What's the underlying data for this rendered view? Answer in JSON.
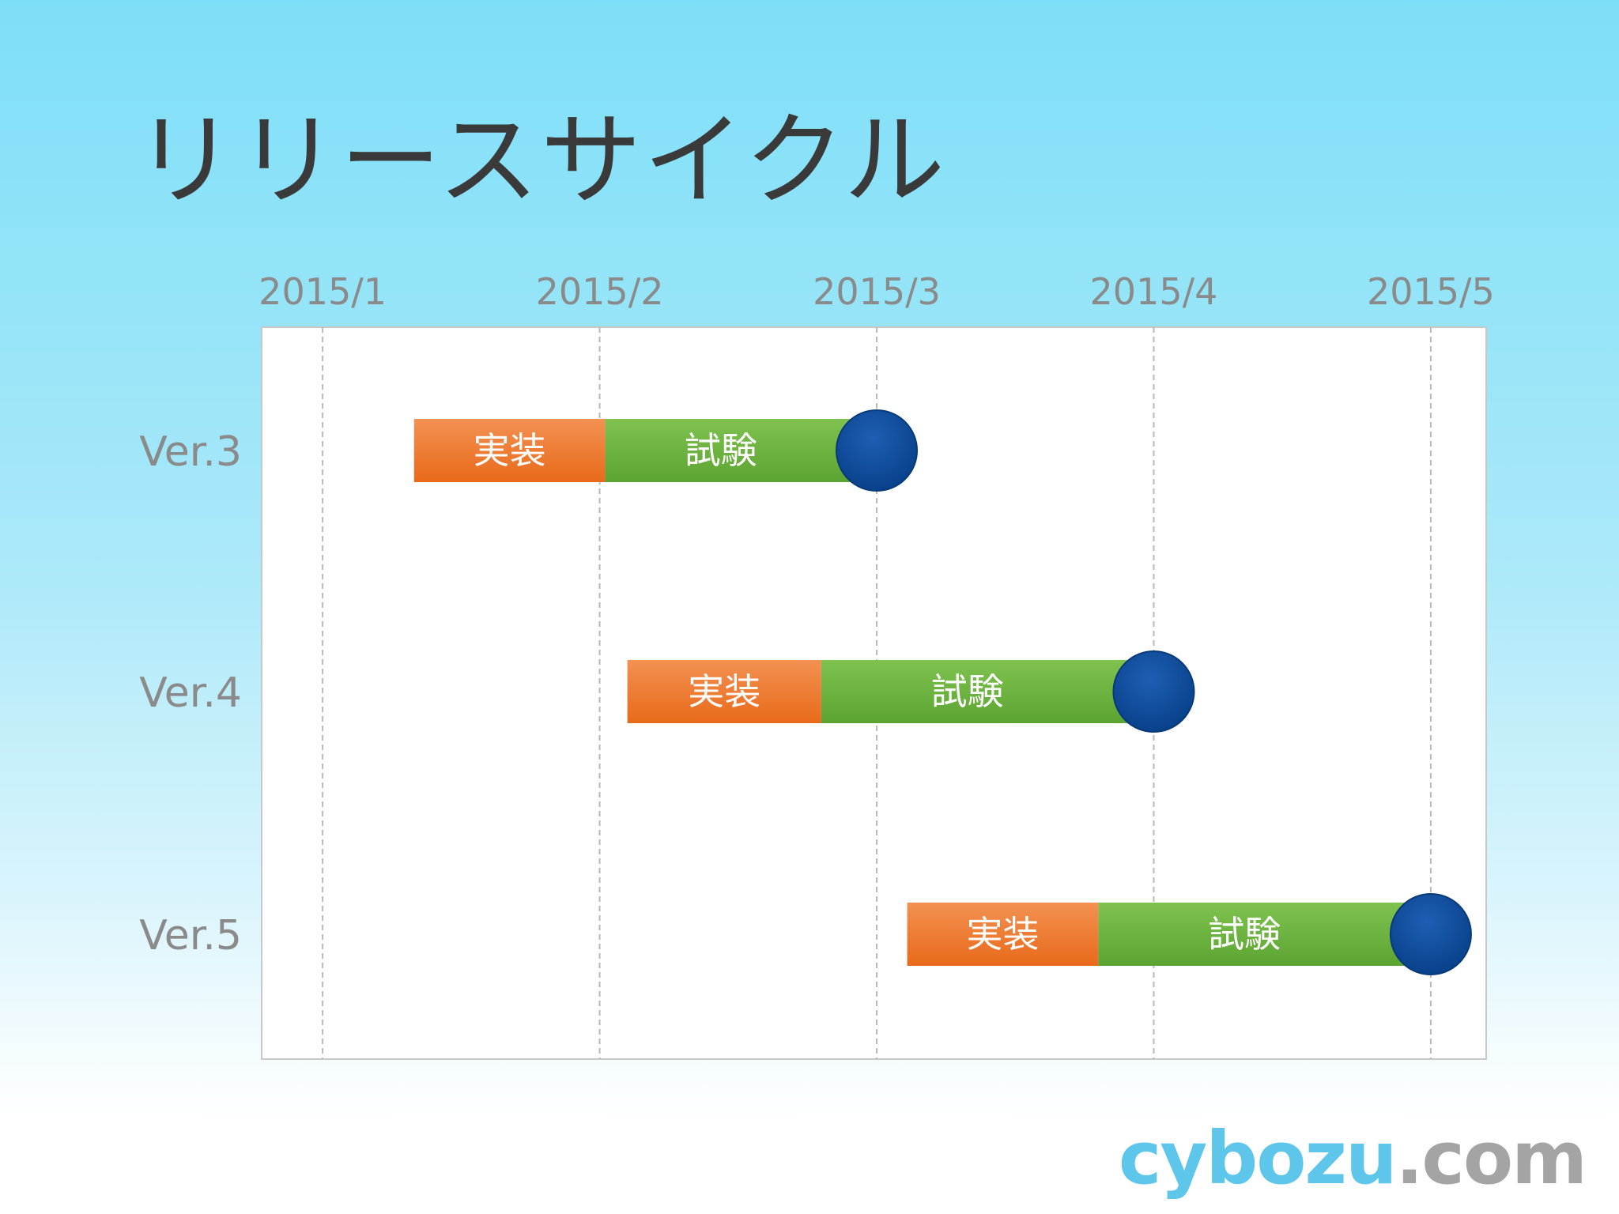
{
  "title": "リリースサイクル",
  "logo": {
    "brand": "cybozu",
    "tld": ".com"
  },
  "colors": {
    "impl": "#ee7328",
    "test": "#6cb240",
    "milestone": "#0a4c9c",
    "grid": "#b9b9b9",
    "text": "#8a8a8a"
  },
  "chart_data": {
    "type": "gantt",
    "x_ticks": [
      "2015/1",
      "2015/2",
      "2015/3",
      "2015/4",
      "2015/5"
    ],
    "x_unit": "month",
    "xlim": [
      0.78,
      5.2
    ],
    "grid": true,
    "rows": [
      {
        "label": "Ver.3",
        "phases": [
          {
            "name": "実装",
            "start": 1.33,
            "end": 2.02
          },
          {
            "name": "試験",
            "start": 2.02,
            "end": 3.0
          }
        ],
        "milestone": 3.0
      },
      {
        "label": "Ver.4",
        "phases": [
          {
            "name": "実装",
            "start": 2.1,
            "end": 2.8
          },
          {
            "name": "試験",
            "start": 2.8,
            "end": 4.0
          }
        ],
        "milestone": 4.0
      },
      {
        "label": "Ver.5",
        "phases": [
          {
            "name": "実装",
            "start": 3.11,
            "end": 3.8
          },
          {
            "name": "試験",
            "start": 3.8,
            "end": 5.0
          }
        ],
        "milestone": 5.0
      }
    ]
  }
}
